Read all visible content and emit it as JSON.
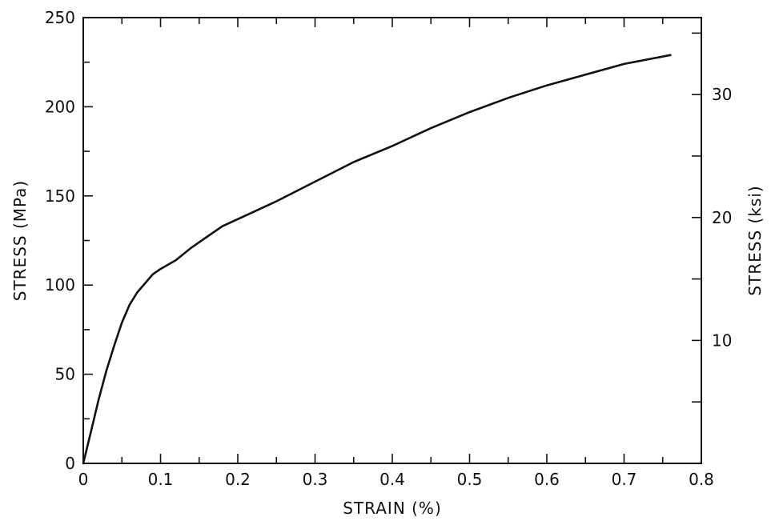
{
  "chart_data": {
    "type": "line",
    "title": "",
    "xlabel": "STRAIN (%)",
    "ylabel": "STRESS (MPa)",
    "y2label": "STRESS (ksi)",
    "xlim": [
      0,
      0.8
    ],
    "ylim": [
      0,
      250
    ],
    "y2lim": [
      0,
      36.26
    ],
    "x_ticks": [
      0,
      0.1,
      0.2,
      0.3,
      0.4,
      0.5,
      0.6,
      0.7,
      0.8
    ],
    "x_tick_labels": [
      "0",
      "0.1",
      "0.2",
      "0.3",
      "0.4",
      "0.5",
      "0.6",
      "0.7",
      "0.8"
    ],
    "y_ticks": [
      0,
      50,
      100,
      150,
      200,
      250
    ],
    "y_tick_labels": [
      "0",
      "50",
      "100",
      "150",
      "200",
      "250"
    ],
    "y2_ticks": [
      10,
      20,
      30
    ],
    "y2_tick_labels": [
      "10",
      "20",
      "30"
    ],
    "grid": false,
    "legend": "none",
    "line_color": "#111111",
    "series": [
      {
        "x": [
          0,
          0.01,
          0.02,
          0.03,
          0.04,
          0.05,
          0.06,
          0.07,
          0.08,
          0.09,
          0.1,
          0.12,
          0.14,
          0.16,
          0.18,
          0.2,
          0.22,
          0.25,
          0.3,
          0.35,
          0.4,
          0.45,
          0.5,
          0.55,
          0.6,
          0.65,
          0.7,
          0.76
        ],
        "y": [
          0,
          18,
          36,
          52,
          66,
          79,
          89,
          96,
          101,
          106,
          109,
          114,
          121,
          127,
          133,
          137,
          141,
          147,
          158,
          169,
          178,
          188,
          197,
          205,
          212,
          218,
          224,
          229
        ]
      }
    ]
  }
}
